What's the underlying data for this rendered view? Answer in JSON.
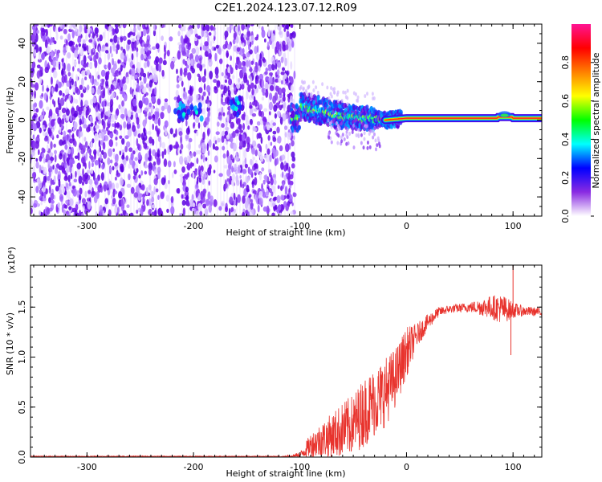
{
  "title": "C2E1.2024.123.07.12.R09",
  "colors": {
    "snr_line": "#e8332d",
    "ridge": "#ff2a2a",
    "background_speckle": "#8a2be2"
  },
  "chart_data": [
    {
      "type": "heatmap",
      "name": "spectrogram",
      "xlabel": "Height of straight line (km)",
      "ylabel": "Frequency (Hz)",
      "xlim": [
        -353,
        127
      ],
      "ylim": [
        -50,
        50
      ],
      "x_ticks": [
        -300,
        -200,
        -100,
        0,
        100
      ],
      "y_ticks": [
        -40,
        -20,
        0,
        20,
        40
      ],
      "colorbar": {
        "label": "Normalized spectral amplitude",
        "range": [
          0,
          1
        ],
        "ticks": [
          "0.0",
          "0.2",
          "0.4",
          "0.6",
          "0.8"
        ],
        "colormap": [
          "#ffffff",
          "#8a2be2",
          "#0000ff",
          "#00ffff",
          "#00ff00",
          "#ffff00",
          "#ff8000",
          "#ff0000",
          "#ff1493"
        ]
      },
      "features": {
        "noise_region_x": [
          -353,
          -105
        ],
        "signal_center_freq_hz": [
          {
            "x": -100,
            "f": 7
          },
          {
            "x": -80,
            "f": 5
          },
          {
            "x": -60,
            "f": 2
          },
          {
            "x": -40,
            "f": 1
          },
          {
            "x": -20,
            "f": 0
          },
          {
            "x": 0,
            "f": 1
          },
          {
            "x": 50,
            "f": 1
          },
          {
            "x": 100,
            "f": 1
          },
          {
            "x": 127,
            "f": 1
          }
        ]
      },
      "grid": false
    },
    {
      "type": "line",
      "name": "snr",
      "xlabel": "Height of straight line (km)",
      "ylabel": "SNR (10 * v/v)",
      "y_multiplier": "(x10⁴)",
      "xlim": [
        -353,
        127
      ],
      "ylim": [
        0,
        1.92
      ],
      "x_ticks": [
        -300,
        -200,
        -100,
        0,
        100
      ],
      "y_ticks": [
        "0.0",
        "0.5",
        "1.0",
        "1.5"
      ],
      "series": [
        {
          "x": [
            -353,
            -300,
            -200,
            -120,
            -100,
            -90,
            -80,
            -70,
            -60,
            -50,
            -40,
            -30,
            -20,
            -10,
            0,
            10,
            20,
            30,
            40,
            60,
            80,
            90,
            100,
            110,
            127
          ],
          "y": [
            0.0,
            0.0,
            0.0,
            0.0,
            0.02,
            0.12,
            0.17,
            0.22,
            0.27,
            0.33,
            0.45,
            0.55,
            0.65,
            0.8,
            1.05,
            1.22,
            1.35,
            1.45,
            1.48,
            1.5,
            1.5,
            1.48,
            1.47,
            1.46,
            1.45
          ],
          "noise_amp": [
            0.0,
            0.0,
            0.0,
            0.0,
            0.03,
            0.12,
            0.18,
            0.22,
            0.28,
            0.3,
            0.35,
            0.35,
            0.35,
            0.3,
            0.25,
            0.12,
            0.08,
            0.05,
            0.04,
            0.05,
            0.12,
            0.15,
            0.08,
            0.05,
            0.04
          ]
        }
      ],
      "annotations": [
        {
          "x": 100,
          "y": 1.92
        },
        {
          "x": 98,
          "y": 1.02
        }
      ],
      "grid": false
    }
  ]
}
